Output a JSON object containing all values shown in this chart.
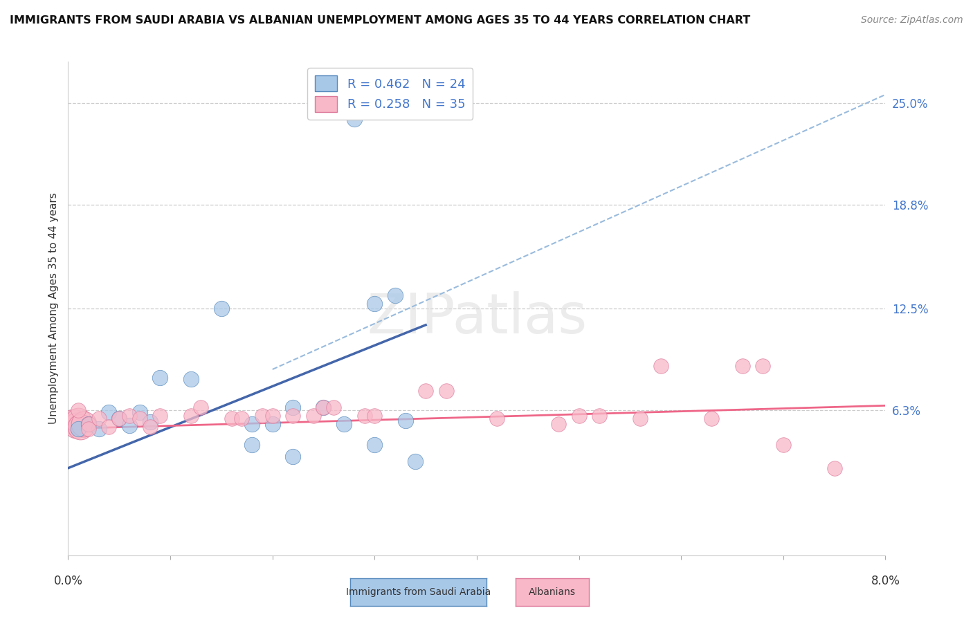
{
  "title": "IMMIGRANTS FROM SAUDI ARABIA VS ALBANIAN UNEMPLOYMENT AMONG AGES 35 TO 44 YEARS CORRELATION CHART",
  "source": "Source: ZipAtlas.com",
  "ylabel": "Unemployment Among Ages 35 to 44 years",
  "ytick_labels": [
    "25.0%",
    "18.8%",
    "12.5%",
    "6.3%"
  ],
  "ytick_values": [
    0.25,
    0.188,
    0.125,
    0.063
  ],
  "xlim": [
    0.0,
    0.08
  ],
  "ylim": [
    -0.025,
    0.275
  ],
  "legend_r1": "R = 0.462",
  "legend_n1": "N = 24",
  "legend_r2": "R = 0.258",
  "legend_n2": "N = 35",
  "color_blue_fill": "#A8C8E8",
  "color_blue_edge": "#5588BB",
  "color_pink_fill": "#F8B8C8",
  "color_pink_edge": "#DD7799",
  "color_blue_line": "#4466AA",
  "color_pink_line": "#EE6688",
  "color_dashed": "#99BBDD",
  "background_color": "#FFFFFF",
  "watermark": "ZIPatlas",
  "blue_dots": [
    [
      0.001,
      0.052
    ],
    [
      0.002,
      0.055
    ],
    [
      0.003,
      0.052
    ],
    [
      0.004,
      0.062
    ],
    [
      0.005,
      0.058
    ],
    [
      0.006,
      0.054
    ],
    [
      0.007,
      0.062
    ],
    [
      0.008,
      0.056
    ],
    [
      0.009,
      0.083
    ],
    [
      0.012,
      0.082
    ],
    [
      0.015,
      0.125
    ],
    [
      0.018,
      0.055
    ],
    [
      0.02,
      0.055
    ],
    [
      0.022,
      0.065
    ],
    [
      0.025,
      0.065
    ],
    [
      0.027,
      0.055
    ],
    [
      0.03,
      0.128
    ],
    [
      0.032,
      0.133
    ],
    [
      0.033,
      0.057
    ],
    [
      0.018,
      0.042
    ],
    [
      0.022,
      0.035
    ],
    [
      0.03,
      0.042
    ],
    [
      0.034,
      0.032
    ],
    [
      0.028,
      0.24
    ]
  ],
  "pink_dots": [
    [
      0.001,
      0.063
    ],
    [
      0.002,
      0.055
    ],
    [
      0.002,
      0.052
    ],
    [
      0.003,
      0.058
    ],
    [
      0.004,
      0.053
    ],
    [
      0.005,
      0.058
    ],
    [
      0.006,
      0.06
    ],
    [
      0.007,
      0.058
    ],
    [
      0.008,
      0.053
    ],
    [
      0.009,
      0.06
    ],
    [
      0.012,
      0.06
    ],
    [
      0.013,
      0.065
    ],
    [
      0.016,
      0.058
    ],
    [
      0.017,
      0.058
    ],
    [
      0.019,
      0.06
    ],
    [
      0.02,
      0.06
    ],
    [
      0.022,
      0.06
    ],
    [
      0.024,
      0.06
    ],
    [
      0.025,
      0.065
    ],
    [
      0.026,
      0.065
    ],
    [
      0.029,
      0.06
    ],
    [
      0.03,
      0.06
    ],
    [
      0.035,
      0.075
    ],
    [
      0.037,
      0.075
    ],
    [
      0.042,
      0.058
    ],
    [
      0.048,
      0.055
    ],
    [
      0.05,
      0.06
    ],
    [
      0.052,
      0.06
    ],
    [
      0.056,
      0.058
    ],
    [
      0.058,
      0.09
    ],
    [
      0.063,
      0.058
    ],
    [
      0.066,
      0.09
    ],
    [
      0.068,
      0.09
    ],
    [
      0.07,
      0.042
    ],
    [
      0.075,
      0.028
    ]
  ],
  "large_pink_cluster": [
    [
      0.0005,
      0.056
    ],
    [
      0.0008,
      0.054
    ],
    [
      0.001,
      0.057
    ],
    [
      0.0012,
      0.053
    ],
    [
      0.0015,
      0.055
    ]
  ],
  "blue_trend_x": [
    0.0,
    0.035
  ],
  "blue_trend_y": [
    0.028,
    0.115
  ],
  "pink_trend_x": [
    0.0,
    0.08
  ],
  "pink_trend_y": [
    0.052,
    0.066
  ],
  "dashed_trend_x": [
    0.02,
    0.08
  ],
  "dashed_trend_y": [
    0.088,
    0.255
  ]
}
